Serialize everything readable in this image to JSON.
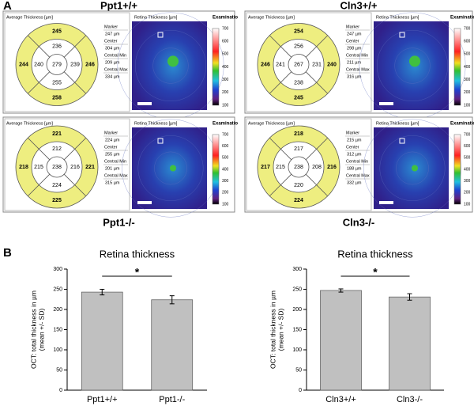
{
  "panel_a": {
    "label": "A",
    "panels": [
      {
        "title": "Ppt1+/+",
        "grid_title": "Average Thickness [µm]",
        "outer": [
          245,
          244,
          246,
          258
        ],
        "inner": [
          236,
          240,
          239,
          255
        ],
        "center": 279,
        "stats": [
          {
            "label": "Marker",
            "value": "247 µm"
          },
          {
            "label": "Center",
            "value": "304 µm"
          },
          {
            "label": "Central Min",
            "value": "209 µm"
          },
          {
            "label": "Central Max",
            "value": "334 µm"
          }
        ],
        "map_title": "Retina Thickness [µm]",
        "map_header": "Examinatio",
        "scale_ticks": [
          700,
          600,
          500,
          400,
          300,
          200,
          100
        ]
      },
      {
        "title": "Cln3+/+",
        "grid_title": "Average Thickness [µm]",
        "outer": [
          254,
          246,
          240,
          245
        ],
        "inner": [
          256,
          241,
          231,
          238
        ],
        "center": 267,
        "stats": [
          {
            "label": "Marker",
            "value": "247 µm"
          },
          {
            "label": "Center",
            "value": "298 µm"
          },
          {
            "label": "Central Min",
            "value": "211 µm"
          },
          {
            "label": "Central Max",
            "value": "316 µm"
          }
        ],
        "map_title": "Retina Thickness [µm]",
        "map_header": "Examinatio",
        "scale_ticks": [
          700,
          600,
          500,
          400,
          300,
          200,
          100
        ]
      },
      {
        "title": "Ppt1-/-",
        "grid_title": "Average Thickness [µm]",
        "outer": [
          221,
          218,
          221,
          225
        ],
        "inner": [
          212,
          215,
          216,
          224
        ],
        "center": 238,
        "stats": [
          {
            "label": "Marker",
            "value": "224 µm"
          },
          {
            "label": "Center",
            "value": "255 µm"
          },
          {
            "label": "Central Min",
            "value": "201 µm"
          },
          {
            "label": "Central Max",
            "value": "315 µm"
          }
        ],
        "map_title": "Retina Thickness [µm]",
        "map_header": "Examinatio",
        "scale_ticks": [
          700,
          600,
          500,
          400,
          300,
          200,
          100
        ]
      },
      {
        "title": "Cln3-/-",
        "grid_title": "Average Thickness [µm]",
        "outer": [
          218,
          217,
          216,
          224
        ],
        "inner": [
          217,
          215,
          208,
          220
        ],
        "center": 238,
        "stats": [
          {
            "label": "Marker",
            "value": "215 µm"
          },
          {
            "label": "Center",
            "value": "312 µm"
          },
          {
            "label": "Central Min",
            "value": "188 µm"
          },
          {
            "label": "Central Max",
            "value": "332 µm"
          }
        ],
        "map_title": "Retina Thickness [µm]",
        "map_header": "Examinatio",
        "scale_ticks": [
          700,
          600,
          500,
          400,
          300,
          200,
          100
        ]
      }
    ]
  },
  "panel_b": {
    "label": "B"
  },
  "chart_data": [
    {
      "type": "bar",
      "title": "Retina thickness",
      "ylabel": [
        "OCT: total thickness in µm",
        "(mean +/- SD)"
      ],
      "categories": [
        "Ppt1+/+",
        "Ppt1-/-"
      ],
      "values": [
        243,
        224
      ],
      "errors": [
        7,
        10
      ],
      "color": "#c0c0c0",
      "ylim": [
        0,
        300
      ],
      "yticks": [
        0,
        50,
        100,
        150,
        200,
        250,
        300
      ],
      "annotation": "*"
    },
    {
      "type": "bar",
      "title": "Retina thickness",
      "ylabel": [
        "OCT: total thickness in µm",
        "(mean +/- SD)"
      ],
      "categories": [
        "Cln3+/+",
        "Cln3-/-"
      ],
      "values": [
        247,
        231
      ],
      "errors": [
        4,
        8
      ],
      "color": "#c0c0c0",
      "ylim": [
        0,
        300
      ],
      "yticks": [
        0,
        50,
        100,
        150,
        200,
        250,
        300
      ],
      "annotation": "*"
    }
  ]
}
